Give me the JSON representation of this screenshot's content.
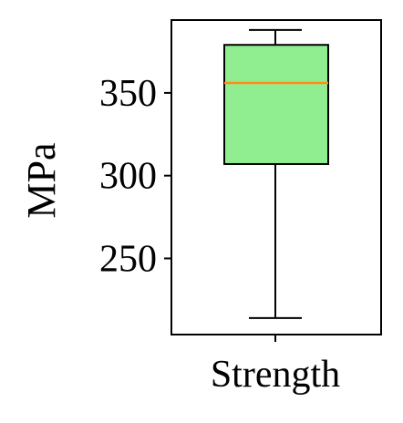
{
  "chart_data": {
    "type": "box",
    "xlabel": "",
    "ylabel": "MPa",
    "ylim": [
      204,
      394
    ],
    "yticks": [
      250,
      300,
      350
    ],
    "categories": [
      "Strength"
    ],
    "series": [
      {
        "name": "Strength",
        "whisker_low": 214,
        "q1": 307,
        "median": 356,
        "q3": 379,
        "whisker_high": 388
      }
    ],
    "grid": false
  },
  "colors": {
    "box_fill": "#90ee90",
    "median_line": "#ff8c1a",
    "stroke": "#000000"
  }
}
